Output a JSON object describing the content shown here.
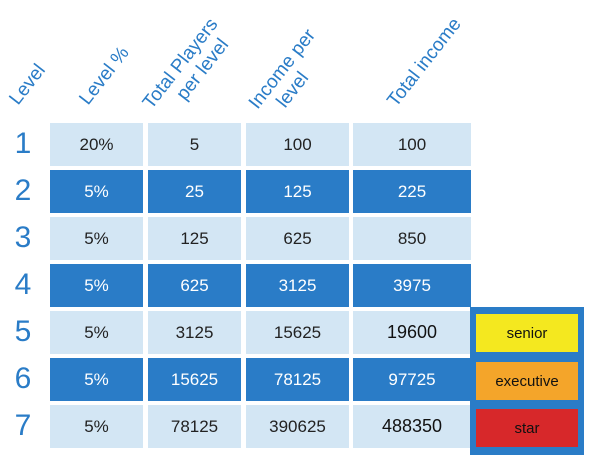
{
  "headers": {
    "level": "Level",
    "level_pct": "Level %",
    "total_players_l1": "Total Players",
    "total_players_l2": "per level",
    "income_per_l1": "Income per",
    "income_per_l2": "level",
    "total_income": "Total income"
  },
  "rows": [
    {
      "level": "1",
      "pct": "20%",
      "players": "5",
      "income": "100",
      "total": "100"
    },
    {
      "level": "2",
      "pct": "5%",
      "players": "25",
      "income": "125",
      "total": "225"
    },
    {
      "level": "3",
      "pct": "5%",
      "players": "125",
      "income": "625",
      "total": "850"
    },
    {
      "level": "4",
      "pct": "5%",
      "players": "625",
      "income": "3125",
      "total": "3975"
    },
    {
      "level": "5",
      "pct": "5%",
      "players": "3125",
      "income": "15625",
      "total": "19600"
    },
    {
      "level": "6",
      "pct": "5%",
      "players": "15625",
      "income": "78125",
      "total": "97725"
    },
    {
      "level": "7",
      "pct": "5%",
      "players": "78125",
      "income": "390625",
      "total": "488350"
    }
  ],
  "ranks": [
    {
      "label": "senior",
      "color": "#f4e81f"
    },
    {
      "label": "executive",
      "color": "#f4a52a"
    },
    {
      "label": "star",
      "color": "#d7282a"
    }
  ],
  "colors": {
    "blue": "#2a7cc7",
    "light": "#d3e6f4"
  }
}
